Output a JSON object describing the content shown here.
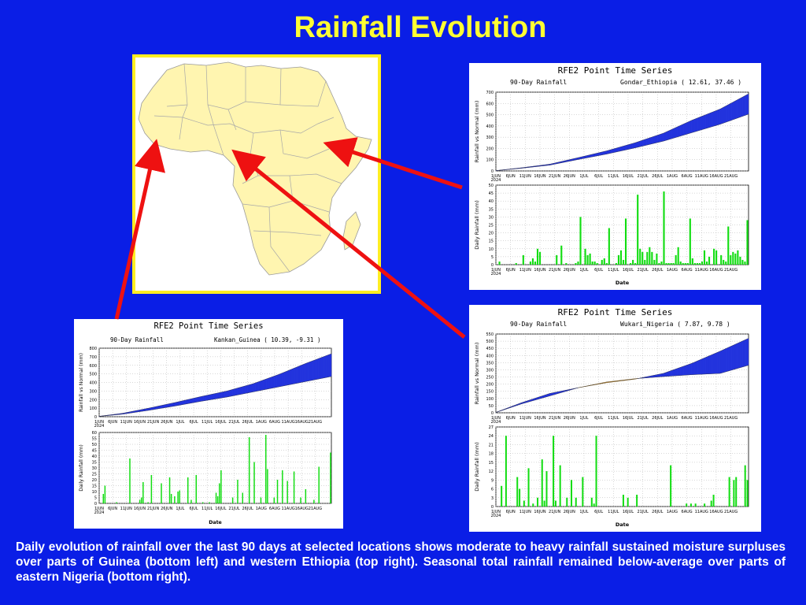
{
  "title": "Rainfall Evolution",
  "caption": "Daily evolution of rainfall over the last 90 days at selected locations shows moderate to heavy rainfall sustained moisture surpluses over parts of Guinea (bottom left) and western Ethiopia (top right). Seasonal total rainfall remained below-average over parts of eastern Nigeria (bottom right).",
  "colors": {
    "background": "#0a1ee6",
    "title": "#ffff33",
    "map_border": "#ffee22",
    "map_land": "#fff5b0",
    "arrow": "#ee1111",
    "surplus": "#2233dd",
    "deficit": "#e0a030",
    "daily_bar": "#11dd11"
  },
  "map": {
    "icon": "africa-map"
  },
  "chart_data": [
    {
      "type": "area",
      "id": "ethiopia",
      "title": "RFE2 Point Time Series",
      "subtitle": "90-Day Rainfall",
      "location": "Gondar_Ethiopia ( 12.61, 37.46 )",
      "x_ticks": [
        "1JUN\n2024",
        "6JUN",
        "11JUN",
        "16JUN",
        "21JUN",
        "26JUN",
        "1JUL",
        "6JUL",
        "11JUL",
        "16JUL",
        "21JUL",
        "26JUL",
        "1AUG",
        "6AUG",
        "11AUG",
        "16AUG",
        "21AUG"
      ],
      "cumulative": {
        "ylabel": "Rainfall vs Normal (mm)",
        "ylim": [
          0,
          700
        ],
        "yticks": [
          0,
          100,
          200,
          300,
          400,
          500,
          600,
          700
        ],
        "x": [
          1,
          10,
          20,
          30,
          40,
          50,
          60,
          70,
          80,
          90
        ],
        "actual": [
          3,
          28,
          60,
          118,
          178,
          250,
          335,
          450,
          550,
          685
        ],
        "normal": [
          2,
          24,
          52,
          102,
          150,
          205,
          265,
          340,
          415,
          505
        ]
      },
      "daily": {
        "ylabel": "Daily Rainfall (mm)",
        "xlabel": "Date",
        "ylim": [
          0,
          50
        ],
        "yticks": [
          0,
          5,
          10,
          15,
          20,
          25,
          30,
          35,
          40,
          45,
          50
        ],
        "values": [
          0,
          2,
          0,
          0,
          0,
          0,
          0,
          0,
          1,
          0,
          0,
          6,
          0,
          0,
          2,
          4,
          2,
          10,
          8,
          0,
          0,
          0,
          0,
          0,
          0,
          6,
          0,
          12,
          0,
          1,
          0,
          0,
          0,
          1,
          2,
          30,
          0,
          10,
          6,
          7,
          2,
          2,
          1,
          0,
          3,
          4,
          1,
          23,
          0,
          0,
          1,
          6,
          9,
          3,
          29,
          0,
          1,
          3,
          1,
          44,
          10,
          8,
          3,
          8,
          11,
          8,
          3,
          7,
          1,
          2,
          46,
          1,
          1,
          1,
          1,
          6,
          11,
          2,
          1,
          1,
          1,
          29,
          4,
          1,
          1,
          1,
          2,
          9,
          2,
          5,
          0,
          10,
          9,
          0,
          6,
          3,
          2,
          24,
          6,
          8,
          7,
          9,
          5,
          3,
          2,
          28
        ]
      }
    },
    {
      "type": "area",
      "id": "nigeria",
      "title": "RFE2 Point Time Series",
      "subtitle": "90-Day Rainfall",
      "location": "Wukari_Nigeria ( 7.87, 9.78 )",
      "x_ticks": [
        "1JUN\n2024",
        "6JUN",
        "11JUN",
        "16JUN",
        "21JUN",
        "26JUN",
        "1JUL",
        "6JUL",
        "11JUL",
        "16JUL",
        "21JUL",
        "26JUL",
        "1AUG",
        "6AUG",
        "11AUG",
        "16AUG",
        "21AUG"
      ],
      "cumulative": {
        "ylabel": "Rainfall vs Normal (mm)",
        "ylim": [
          0,
          550
        ],
        "yticks": [
          0,
          50,
          100,
          150,
          200,
          250,
          300,
          350,
          400,
          450,
          500,
          550
        ],
        "x": [
          1,
          10,
          20,
          30,
          40,
          50,
          60,
          70,
          80,
          90
        ],
        "actual": [
          3,
          70,
          135,
          175,
          210,
          235,
          275,
          345,
          430,
          520
        ],
        "normal": [
          2,
          62,
          118,
          175,
          215,
          238,
          253,
          266,
          275,
          332
        ]
      },
      "daily": {
        "ylabel": "Daily Rainfall (mm)",
        "xlabel": "Date",
        "ylim": [
          0,
          27
        ],
        "yticks": [
          0,
          3,
          6,
          9,
          12,
          15,
          18,
          21,
          24,
          27
        ],
        "values": [
          0,
          0,
          7,
          0,
          24,
          0,
          0,
          0,
          0,
          10,
          6,
          0,
          2,
          0,
          13,
          0,
          1,
          0,
          3,
          0,
          16,
          2,
          12,
          0,
          0,
          24,
          2,
          0,
          14,
          0,
          0,
          3,
          0,
          9,
          0,
          3,
          0,
          0,
          10,
          0,
          0,
          0,
          3,
          1,
          24,
          0,
          0,
          0,
          0,
          0,
          0,
          0,
          0,
          0,
          0,
          0,
          4,
          0,
          3,
          0,
          0,
          0,
          4,
          0,
          0,
          0,
          0,
          0,
          0,
          0,
          0,
          0,
          0,
          0,
          0,
          0,
          0,
          14,
          0,
          0,
          0,
          0,
          0,
          0,
          1,
          0,
          1,
          0,
          1,
          0,
          0,
          0,
          1,
          0,
          0,
          2,
          4,
          0,
          0,
          0,
          0,
          0,
          0,
          10,
          0,
          9,
          10,
          0,
          0,
          0,
          14,
          9
        ]
      }
    },
    {
      "type": "area",
      "id": "guinea",
      "title": "RFE2 Point Time Series",
      "subtitle": "90-Day Rainfall",
      "location": "Kankan_Guinea ( 10.39, -9.31 )",
      "x_ticks": [
        "1JUN\n2024",
        "6JUN",
        "11JUN",
        "16JUN",
        "21JUN",
        "26JUN",
        "1JUL",
        "6JUL",
        "11JUL",
        "16JUL",
        "21JUL",
        "26JUL",
        "1AUG",
        "6AUG",
        "11AUG",
        "16AUG",
        "21AUG"
      ],
      "cumulative": {
        "ylabel": "Rainfall vs Normal (mm)",
        "ylim": [
          0,
          800
        ],
        "yticks": [
          0,
          100,
          200,
          300,
          400,
          500,
          600,
          700,
          800
        ],
        "x": [
          1,
          10,
          20,
          30,
          40,
          50,
          60,
          70,
          80,
          90
        ],
        "actual": [
          5,
          40,
          100,
          165,
          235,
          300,
          385,
          495,
          620,
          735
        ],
        "normal": [
          4,
          30,
          75,
          125,
          180,
          230,
          290,
          350,
          410,
          470
        ]
      },
      "daily": {
        "ylabel": "Daily Rainfall (mm)",
        "xlabel": "Date",
        "ylim": [
          0,
          60
        ],
        "yticks": [
          0,
          5,
          10,
          15,
          20,
          25,
          30,
          35,
          40,
          45,
          50,
          55,
          60
        ],
        "values": [
          0,
          0,
          8,
          15,
          0,
          0,
          0,
          0,
          0,
          0,
          1,
          0,
          0,
          0,
          0,
          0,
          0,
          0,
          38,
          0,
          0,
          0,
          0,
          0,
          3,
          5,
          18,
          0,
          0,
          1,
          0,
          24,
          0,
          0,
          0,
          0,
          0,
          17,
          0,
          0,
          0,
          0,
          22,
          8,
          0,
          6,
          0,
          10,
          11,
          0,
          0,
          0,
          0,
          22,
          0,
          3,
          0,
          0,
          24,
          0,
          0,
          0,
          1,
          0,
          0,
          0,
          1,
          0,
          0,
          0,
          9,
          6,
          17,
          28,
          0,
          0,
          0,
          0,
          0,
          0,
          5,
          0,
          0,
          20,
          0,
          0,
          9,
          0,
          0,
          0,
          56,
          0,
          0,
          35,
          0,
          0,
          0,
          5,
          0,
          0,
          58,
          29,
          0,
          0,
          0,
          5,
          0,
          20,
          0,
          0,
          28,
          0,
          0,
          19,
          0,
          0,
          0,
          27,
          0,
          0,
          0,
          5,
          0,
          0,
          12,
          0,
          0,
          0,
          0,
          3,
          0,
          0,
          31,
          0,
          0,
          0,
          0,
          0,
          0,
          43
        ]
      }
    }
  ]
}
